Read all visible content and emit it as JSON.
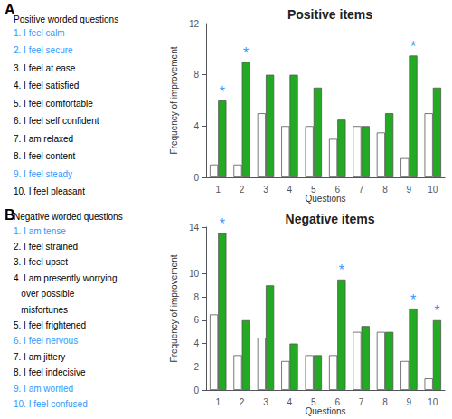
{
  "chart_data": [
    {
      "type": "bar",
      "panel": "A",
      "title": "Positive items",
      "x_label": "Questions",
      "y_label": "Frequency of improvement",
      "categories": [
        "1",
        "2",
        "3",
        "4",
        "5",
        "6",
        "7",
        "8",
        "9",
        "10"
      ],
      "series": [
        {
          "color": "white",
          "values": [
            1,
            1,
            5,
            4,
            4,
            3,
            4,
            3.5,
            1.5,
            5
          ]
        },
        {
          "color": "#22aa22",
          "values": [
            6,
            9,
            8,
            8,
            7,
            4.5,
            4,
            5,
            9.5,
            7
          ]
        }
      ],
      "ylim": [
        0,
        12
      ],
      "yticks": [
        0,
        4,
        8,
        12
      ],
      "grid": false,
      "annotations": [
        {
          "text": "*",
          "category": "1",
          "color": "#3399ff"
        },
        {
          "text": "*",
          "category": "2",
          "color": "#3399ff"
        },
        {
          "text": "*",
          "category": "9",
          "color": "#3399ff"
        }
      ],
      "item_heading": "Positive worded questions",
      "items": [
        {
          "text": "1. I feel calm",
          "color": "#3399ff"
        },
        {
          "text": "2. I feel secure",
          "color": "#3399ff"
        },
        {
          "text": "3. I feel at ease",
          "color": "black"
        },
        {
          "text": "4. I feel satisfied",
          "color": "black"
        },
        {
          "text": "5. I feel comfortable",
          "color": "black"
        },
        {
          "text": "6. I feel self confident",
          "color": "black"
        },
        {
          "text": "7. I am relaxed",
          "color": "black"
        },
        {
          "text": "8. I feel content",
          "color": "black"
        },
        {
          "text": "9. I feel steady",
          "color": "#3399ff"
        },
        {
          "text": "10. I feel pleasant",
          "color": "black"
        }
      ]
    },
    {
      "type": "bar",
      "panel": "B",
      "title": "Negative items",
      "x_label": "Questions",
      "y_label": "Frequency of improvement",
      "categories": [
        "1",
        "2",
        "3",
        "4",
        "5",
        "6",
        "7",
        "8",
        "9",
        "10"
      ],
      "series": [
        {
          "color": "white",
          "values": [
            6.5,
            3,
            4.5,
            2.5,
            3,
            3,
            5,
            5,
            2.5,
            1
          ]
        },
        {
          "color": "#22aa22",
          "values": [
            13.5,
            6,
            9,
            4,
            3,
            9.5,
            5.5,
            5,
            7,
            6
          ]
        }
      ],
      "ylim": [
        0,
        14
      ],
      "yticks": [
        0,
        2,
        4,
        6,
        8,
        10,
        14
      ],
      "grid": false,
      "annotations": [
        {
          "text": "*",
          "category": "1",
          "color": "#3399ff"
        },
        {
          "text": "*",
          "category": "6",
          "color": "#3399ff"
        },
        {
          "text": "*",
          "category": "9",
          "color": "#3399ff"
        },
        {
          "text": "*",
          "category": "10",
          "color": "#3399ff"
        }
      ],
      "item_heading": "Negative worded questions",
      "items": [
        {
          "text": "1. I am tense",
          "color": "#3399ff"
        },
        {
          "text": "2. I feel strained",
          "color": "black"
        },
        {
          "text": "3. I feel upset",
          "color": "black"
        },
        {
          "text": "4. I am presently worrying",
          "color": "black"
        },
        {
          "text": "   over possible",
          "color": "black"
        },
        {
          "text": "   misfortunes",
          "color": "black"
        },
        {
          "text": "5. I feel frightened",
          "color": "black"
        },
        {
          "text": "6. I feel nervous",
          "color": "#3399ff"
        },
        {
          "text": "7. I am jittery",
          "color": "black"
        },
        {
          "text": "8. I feel indecisive",
          "color": "black"
        },
        {
          "text": "9. I am worried",
          "color": "#3399ff"
        },
        {
          "text": "10. I feel confused",
          "color": "#3399ff"
        }
      ]
    }
  ]
}
